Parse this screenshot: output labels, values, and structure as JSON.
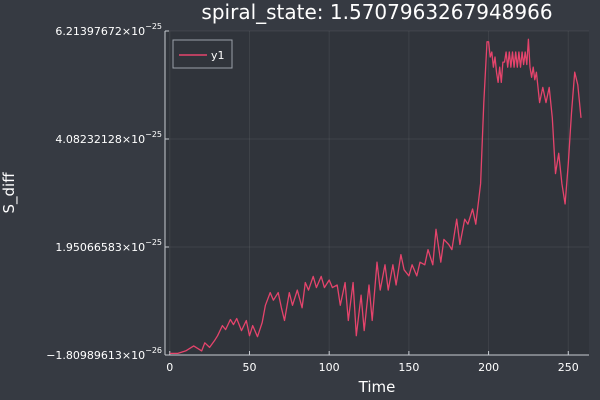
{
  "chart_data": {
    "type": "line",
    "title": "spiral_state: 1.5707963267948966",
    "xlabel": "Time",
    "ylabel": "S_diff",
    "xlim": [
      -3,
      263
    ],
    "ylim": [
      -1.80989613e-26,
      6.21397672e-25
    ],
    "x_ticks": [
      {
        "value": 0,
        "label": "0"
      },
      {
        "value": 50,
        "label": "50"
      },
      {
        "value": 100,
        "label": "100"
      },
      {
        "value": 150,
        "label": "150"
      },
      {
        "value": 200,
        "label": "200"
      },
      {
        "value": 250,
        "label": "250"
      }
    ],
    "y_ticks": [
      {
        "value": -1.80989613e-26,
        "mantissa": "−1.80989613×10",
        "exp": "−26"
      },
      {
        "value": 1.95066583e-25,
        "mantissa": "1.95066583×10",
        "exp": "−25"
      },
      {
        "value": 4.08232128e-25,
        "mantissa": "4.08232128×10",
        "exp": "−25"
      },
      {
        "value": 6.21397672e-25,
        "mantissa": "6.21397672×10",
        "exp": "−25"
      }
    ],
    "legend": {
      "position": "top-left",
      "entries": [
        "y1"
      ]
    },
    "grid": true,
    "series": [
      {
        "name": "y1",
        "color": "#e5446c",
        "x": [
          0,
          5,
          10,
          15,
          20,
          22,
          25,
          28,
          30,
          33,
          35,
          38,
          40,
          42,
          45,
          48,
          50,
          52,
          55,
          58,
          60,
          63,
          65,
          68,
          70,
          72,
          75,
          77,
          80,
          83,
          85,
          87,
          90,
          92,
          95,
          97,
          100,
          102,
          105,
          107,
          110,
          112,
          115,
          117,
          120,
          122,
          125,
          127,
          130,
          132,
          135,
          137,
          140,
          142,
          145,
          147,
          150,
          152,
          155,
          157,
          160,
          162,
          165,
          167,
          170,
          172,
          175,
          177,
          180,
          182,
          185,
          187,
          190,
          192,
          195,
          196,
          197,
          198,
          199,
          200,
          201,
          202,
          203,
          204,
          205,
          206,
          207,
          208,
          209,
          210,
          211,
          212,
          213,
          214,
          215,
          216,
          217,
          218,
          219,
          220,
          221,
          222,
          223,
          224,
          225,
          226,
          227,
          228,
          229,
          230,
          232,
          234,
          236,
          238,
          240,
          242,
          244,
          246,
          248,
          250,
          252,
          254,
          256,
          258
        ],
        "y": [
          -1.5e-26,
          -1.5e-26,
          -1e-26,
          -2e-28,
          -1e-26,
          6e-27,
          -3e-27,
          1e-26,
          2e-26,
          4e-26,
          3.2e-26,
          5.2e-26,
          4.2e-26,
          5.4e-26,
          3e-26,
          5e-26,
          2e-26,
          4e-26,
          1.8e-26,
          4.6e-26,
          8e-26,
          1.05e-25,
          9e-26,
          1.05e-25,
          7.5e-26,
          5e-26,
          1.05e-25,
          8e-26,
          1.1e-25,
          7.5e-26,
          1.25e-25,
          1.1e-25,
          1.37e-25,
          1.15e-25,
          1.37e-25,
          1.15e-25,
          1.3e-25,
          1.15e-25,
          1.2e-25,
          8e-26,
          1.25e-25,
          5e-26,
          1.25e-25,
          2e-26,
          1e-25,
          3e-26,
          1.2e-25,
          5e-26,
          1.65e-25,
          1.1e-25,
          1.6e-25,
          1.1e-25,
          1.6e-25,
          1.2e-25,
          1.8e-25,
          1.5e-25,
          1.38e-25,
          1.6e-25,
          1.38e-25,
          1.65e-25,
          1.6e-25,
          1.9e-25,
          1.6e-25,
          2.3e-25,
          1.65e-25,
          2.1e-25,
          2e-25,
          1.9e-25,
          2.5e-25,
          2e-25,
          2.5e-25,
          2.4e-25,
          2.7e-25,
          2.4e-25,
          3.2e-25,
          4e-25,
          4.8e-25,
          5.4e-25,
          6e-25,
          6e-25,
          5.7e-25,
          5.8e-25,
          5.5e-25,
          5.7e-25,
          5.4e-25,
          5.2e-25,
          5.5e-25,
          5.2e-25,
          5.6e-25,
          5.6e-25,
          5.8e-25,
          5.5e-25,
          5.8e-25,
          5.5e-25,
          5.8e-25,
          5.5e-25,
          5.8e-25,
          5.5e-25,
          5.8e-25,
          5.5e-25,
          5.8e-25,
          5.55e-25,
          5.8e-25,
          5.55e-25,
          6.05e-25,
          5.5e-25,
          5.3e-25,
          5.5e-25,
          5.25e-25,
          5.4e-25,
          4.8e-25,
          5.1e-25,
          4.8e-25,
          5.1e-25,
          4.5e-25,
          3.4e-25,
          3.8e-25,
          3.2e-25,
          2.8e-25,
          3.6e-25,
          4.6e-25,
          5.4e-25,
          5.15e-25,
          4.5e-25
        ]
      }
    ]
  }
}
